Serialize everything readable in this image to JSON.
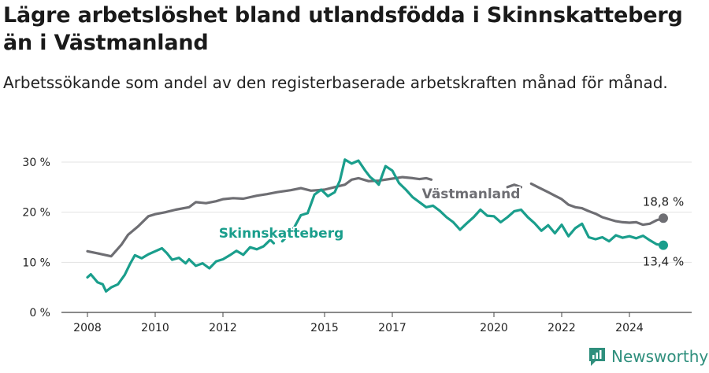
{
  "header": {
    "title": "Lägre arbetslöshet bland utlandsfödda i Skinnskatteberg än i Västmanland",
    "subtitle": "Arbetssökande som andel av den registerbaserade arbetskraften månad för månad."
  },
  "brand": {
    "name": "Newsworthy",
    "icon": "newsworthy-logo-icon"
  },
  "colors": {
    "skinnskatteberg": "#1a9e8c",
    "vastmanland": "#6e6e73",
    "grid": "#e3e3e3",
    "axis": "#444444"
  },
  "chart_data": {
    "type": "line",
    "y_ticks": [
      "0 %",
      "10 %",
      "20 %",
      "30 %"
    ],
    "x_ticks": [
      "2008",
      "2010",
      "2012",
      "2015",
      "2017",
      "2020",
      "2022",
      "2024"
    ],
    "ylim": [
      0,
      30
    ],
    "xlim": [
      2007.5,
      2025.5
    ],
    "grid": true,
    "series": [
      {
        "name": "Västmanland",
        "color": "#6e6e73",
        "end_label": "18,8 %",
        "points": [
          [
            2008.0,
            12.2
          ],
          [
            2008.3,
            11.8
          ],
          [
            2008.5,
            11.5
          ],
          [
            2008.7,
            11.2
          ],
          [
            2009.0,
            13.5
          ],
          [
            2009.2,
            15.5
          ],
          [
            2009.5,
            17.2
          ],
          [
            2009.8,
            19.2
          ],
          [
            2010.0,
            19.6
          ],
          [
            2010.3,
            20.0
          ],
          [
            2010.6,
            20.5
          ],
          [
            2011.0,
            21.0
          ],
          [
            2011.2,
            22.0
          ],
          [
            2011.5,
            21.8
          ],
          [
            2011.8,
            22.2
          ],
          [
            2012.0,
            22.6
          ],
          [
            2012.3,
            22.8
          ],
          [
            2012.6,
            22.7
          ],
          [
            2013.0,
            23.3
          ],
          [
            2013.3,
            23.6
          ],
          [
            2013.6,
            24.0
          ],
          [
            2014.0,
            24.4
          ],
          [
            2014.3,
            24.8
          ],
          [
            2014.6,
            24.3
          ],
          [
            2015.0,
            24.5
          ],
          [
            2015.3,
            25.0
          ],
          [
            2015.6,
            25.5
          ],
          [
            2015.8,
            26.5
          ],
          [
            2016.0,
            26.8
          ],
          [
            2016.3,
            26.2
          ],
          [
            2016.6,
            26.3
          ],
          [
            2017.0,
            26.7
          ],
          [
            2017.3,
            27.0
          ],
          [
            2017.6,
            26.8
          ],
          [
            2017.8,
            26.6
          ],
          [
            2018.0,
            26.8
          ],
          [
            2018.15,
            26.5
          ],
          [
            null,
            null
          ],
          [
            2020.4,
            25.0
          ],
          [
            2020.6,
            25.5
          ],
          [
            2020.8,
            25.0
          ],
          [
            null,
            null
          ],
          [
            2021.1,
            25.7
          ],
          [
            2021.3,
            25.0
          ],
          [
            2021.6,
            24.0
          ],
          [
            2021.8,
            23.3
          ],
          [
            2022.0,
            22.6
          ],
          [
            2022.2,
            21.5
          ],
          [
            2022.4,
            21.0
          ],
          [
            2022.6,
            20.8
          ],
          [
            2022.8,
            20.2
          ],
          [
            2023.0,
            19.7
          ],
          [
            2023.2,
            19.0
          ],
          [
            2023.4,
            18.6
          ],
          [
            2023.6,
            18.2
          ],
          [
            2023.8,
            18.0
          ],
          [
            2024.0,
            17.9
          ],
          [
            2024.2,
            18.0
          ],
          [
            2024.4,
            17.5
          ],
          [
            2024.6,
            17.7
          ],
          [
            2024.8,
            18.4
          ],
          [
            2025.0,
            18.8
          ]
        ]
      },
      {
        "name": "Skinnskatteberg",
        "color": "#1a9e8c",
        "end_label": "13,4 %",
        "points": [
          [
            2008.0,
            7.0
          ],
          [
            2008.1,
            7.6
          ],
          [
            2008.3,
            6.0
          ],
          [
            2008.45,
            5.6
          ],
          [
            2008.55,
            4.2
          ],
          [
            2008.7,
            5.0
          ],
          [
            2008.9,
            5.6
          ],
          [
            2009.1,
            7.5
          ],
          [
            2009.25,
            9.6
          ],
          [
            2009.4,
            11.4
          ],
          [
            2009.6,
            10.8
          ],
          [
            2009.8,
            11.6
          ],
          [
            2010.0,
            12.2
          ],
          [
            2010.2,
            12.8
          ],
          [
            2010.35,
            11.8
          ],
          [
            2010.5,
            10.5
          ],
          [
            2010.7,
            10.9
          ],
          [
            2010.9,
            9.8
          ],
          [
            2011.0,
            10.6
          ],
          [
            2011.2,
            9.3
          ],
          [
            2011.4,
            9.8
          ],
          [
            2011.6,
            8.8
          ],
          [
            2011.8,
            10.2
          ],
          [
            2012.0,
            10.6
          ],
          [
            2012.2,
            11.4
          ],
          [
            2012.4,
            12.3
          ],
          [
            2012.6,
            11.5
          ],
          [
            2012.8,
            13.0
          ],
          [
            2013.0,
            12.6
          ],
          [
            2013.2,
            13.2
          ],
          [
            2013.4,
            14.5
          ],
          [
            2013.5,
            13.8
          ],
          [
            null,
            null
          ],
          [
            2013.75,
            14.2
          ],
          [
            2013.9,
            15.2
          ],
          [
            2014.1,
            16.9
          ],
          [
            2014.3,
            19.4
          ],
          [
            2014.5,
            19.8
          ],
          [
            2014.7,
            23.5
          ],
          [
            2014.9,
            24.5
          ],
          [
            2015.1,
            23.2
          ],
          [
            2015.3,
            24.0
          ],
          [
            2015.45,
            26.3
          ],
          [
            2015.6,
            30.5
          ],
          [
            2015.8,
            29.7
          ],
          [
            2016.0,
            30.3
          ],
          [
            2016.2,
            28.3
          ],
          [
            2016.35,
            27.0
          ],
          [
            2016.5,
            26.2
          ],
          [
            2016.6,
            25.5
          ],
          [
            2016.8,
            29.2
          ],
          [
            2017.0,
            28.3
          ],
          [
            2017.2,
            25.8
          ],
          [
            2017.4,
            24.5
          ],
          [
            2017.6,
            23.0
          ],
          [
            2017.8,
            22.0
          ],
          [
            2018.0,
            21.0
          ],
          [
            2018.2,
            21.3
          ],
          [
            2018.4,
            20.3
          ],
          [
            2018.6,
            19.0
          ],
          [
            2018.8,
            18.0
          ],
          [
            2019.0,
            16.5
          ],
          [
            2019.2,
            17.8
          ],
          [
            2019.4,
            19.0
          ],
          [
            2019.6,
            20.5
          ],
          [
            2019.8,
            19.3
          ],
          [
            2020.0,
            19.2
          ],
          [
            2020.2,
            18.0
          ],
          [
            2020.4,
            19.0
          ],
          [
            2020.6,
            20.2
          ],
          [
            2020.8,
            20.5
          ],
          [
            2021.0,
            19.0
          ],
          [
            2021.2,
            17.8
          ],
          [
            2021.4,
            16.3
          ],
          [
            2021.6,
            17.4
          ],
          [
            2021.8,
            15.8
          ],
          [
            2022.0,
            17.5
          ],
          [
            2022.2,
            15.2
          ],
          [
            2022.4,
            16.8
          ],
          [
            2022.6,
            17.7
          ],
          [
            2022.8,
            15.0
          ],
          [
            2023.0,
            14.6
          ],
          [
            2023.2,
            15.0
          ],
          [
            2023.4,
            14.2
          ],
          [
            2023.6,
            15.4
          ],
          [
            2023.8,
            14.9
          ],
          [
            2024.0,
            15.2
          ],
          [
            2024.2,
            14.8
          ],
          [
            2024.4,
            15.3
          ],
          [
            2024.6,
            14.4
          ],
          [
            2024.8,
            13.6
          ],
          [
            2025.0,
            13.4
          ]
        ]
      }
    ]
  }
}
